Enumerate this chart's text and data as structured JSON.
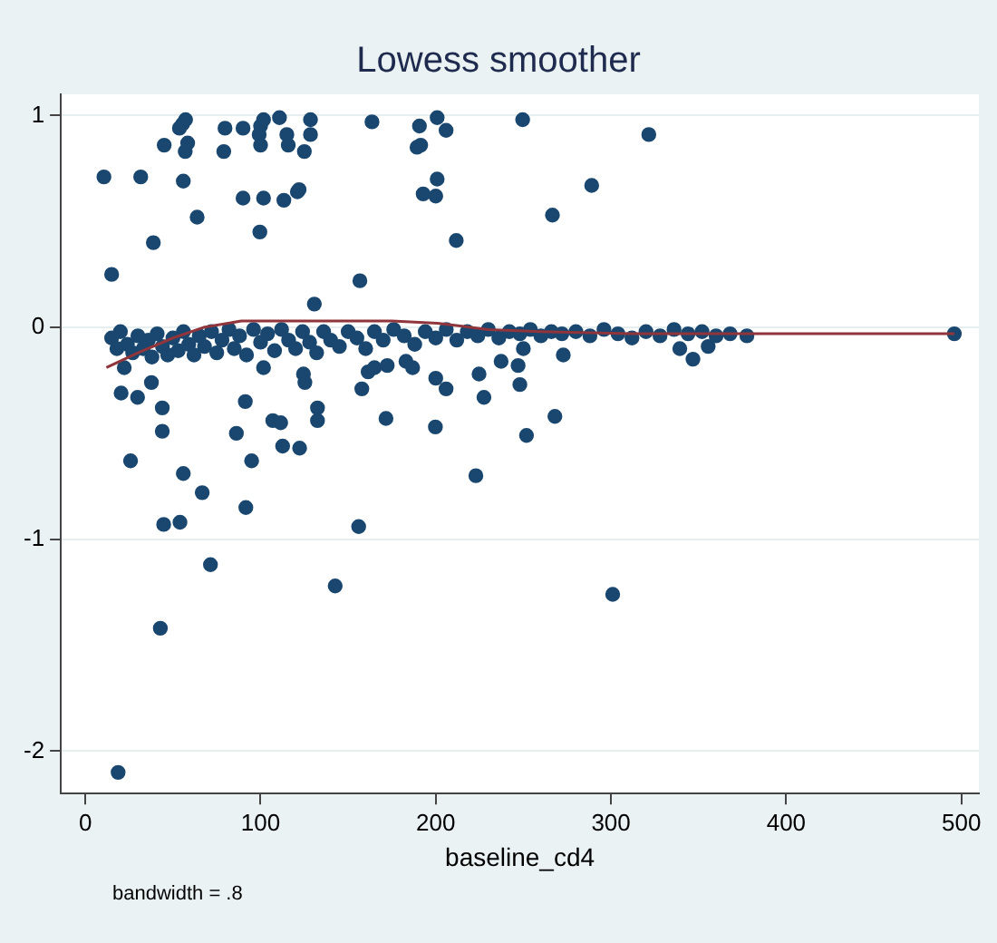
{
  "chart_data": {
    "type": "scatter",
    "title": "Lowess smoother",
    "xlabel": "baseline_cd4",
    "annotations": [
      "bandwidth = .8"
    ],
    "xlim": [
      -14,
      510
    ],
    "xticks": [
      0,
      100,
      200,
      300,
      400,
      500
    ],
    "ylim": [
      -2.2,
      1.1
    ],
    "yticks": [
      -2,
      -1,
      0,
      1
    ],
    "grid": "y",
    "legend": false,
    "series": [
      {
        "marker": "circle",
        "color": "#1a476f",
        "x": [
          10.6,
          31.6,
          15,
          38.8,
          45,
          53.7,
          55.5,
          57.2,
          58.4,
          57,
          55.9,
          63.8,
          79.7,
          79,
          90,
          90,
          100,
          101.7,
          99.2,
          100,
          99.6,
          101.7,
          110.8,
          115,
          115.8,
          113.3,
          121,
          122,
          125,
          128.5,
          128.5,
          130.7,
          156.7,
          163.6,
          190.7,
          189.3,
          191.4,
          200.8,
          205.9,
          200.8,
          192.8,
          200,
          211.7,
          249.6,
          321.6,
          289,
          266.6,
          22.2,
          20.4,
          29.8,
          37.7,
          43.9,
          43.9,
          25.8,
          55.9,
          91.3,
          86.2,
          94.9,
          107,
          111.5,
          112.6,
          122.3,
          101.7,
          124.5,
          125.3,
          132.5,
          132.5,
          157.8,
          161.4,
          165,
          172.3,
          171.6,
          183,
          186.8,
          200,
          205.9,
          199.8,
          224.7,
          227.5,
          237.3,
          247,
          248,
          251.8,
          222.9,
          250,
          272.8,
          268,
          339.3,
          346.8,
          355.5,
          377.6,
          496,
          66.7,
          44.7,
          54,
          71.4,
          42.8,
          18.7,
          91.6,
          142.6,
          156,
          301,
          15,
          18,
          20,
          24,
          27,
          30,
          33,
          36,
          38,
          41,
          44,
          47,
          50,
          53,
          56,
          59,
          62,
          65,
          68,
          72,
          75,
          78,
          82,
          85,
          88,
          92,
          96,
          100,
          104,
          108,
          112,
          116,
          120,
          124,
          128,
          132,
          136,
          140,
          145,
          150,
          155,
          160,
          165,
          170,
          176,
          182,
          188,
          194,
          200,
          206,
          212,
          218,
          224,
          230,
          236,
          242,
          248,
          254,
          260,
          266,
          272,
          280,
          288,
          296,
          304,
          312,
          320,
          328,
          336,
          344,
          352,
          360,
          368
        ],
        "values": [
          0.71,
          0.71,
          0.25,
          0.4,
          0.86,
          0.94,
          0.96,
          0.98,
          0.87,
          0.83,
          0.69,
          0.52,
          0.94,
          0.83,
          0.94,
          0.61,
          0.95,
          0.98,
          0.91,
          0.86,
          0.45,
          0.61,
          0.99,
          0.91,
          0.86,
          0.6,
          0.64,
          0.65,
          0.83,
          0.98,
          0.91,
          0.11,
          0.22,
          0.97,
          0.95,
          0.85,
          0.86,
          0.99,
          0.93,
          0.7,
          0.63,
          0.62,
          0.41,
          0.98,
          0.91,
          0.67,
          0.53,
          -0.19,
          -0.31,
          -0.33,
          -0.26,
          -0.38,
          -0.49,
          -0.63,
          -0.69,
          -0.35,
          -0.5,
          -0.63,
          -0.44,
          -0.45,
          -0.56,
          -0.57,
          -0.19,
          -0.22,
          -0.26,
          -0.38,
          -0.44,
          -0.29,
          -0.21,
          -0.19,
          -0.18,
          -0.43,
          -0.16,
          -0.19,
          -0.24,
          -0.29,
          -0.47,
          -0.22,
          -0.33,
          -0.16,
          -0.18,
          -0.27,
          -0.51,
          -0.7,
          -0.1,
          -0.13,
          -0.42,
          -0.1,
          -0.15,
          -0.09,
          -0.04,
          -0.03,
          -0.78,
          -0.93,
          -0.92,
          -1.12,
          -1.42,
          -2.1,
          -0.85,
          -1.22,
          -0.94,
          -1.26,
          -0.05,
          -0.1,
          -0.02,
          -0.08,
          -0.12,
          -0.04,
          -0.1,
          -0.06,
          -0.14,
          -0.03,
          -0.09,
          -0.13,
          -0.05,
          -0.11,
          -0.02,
          -0.08,
          -0.13,
          -0.04,
          -0.09,
          -0.02,
          -0.12,
          -0.06,
          -0.01,
          -0.1,
          -0.04,
          -0.13,
          -0.01,
          -0.07,
          -0.03,
          -0.11,
          -0.01,
          -0.06,
          -0.1,
          -0.02,
          -0.07,
          -0.12,
          -0.02,
          -0.06,
          -0.09,
          -0.02,
          -0.05,
          -0.1,
          -0.02,
          -0.06,
          -0.01,
          -0.04,
          -0.08,
          -0.02,
          -0.05,
          -0.01,
          -0.06,
          -0.02,
          -0.04,
          -0.01,
          -0.05,
          -0.02,
          -0.03,
          -0.01,
          -0.04,
          -0.02,
          -0.03,
          -0.02,
          -0.04,
          -0.01,
          -0.03,
          -0.05,
          -0.02,
          -0.04,
          -0.01,
          -0.03,
          -0.02,
          -0.04,
          -0.03
        ]
      },
      {
        "type": "line",
        "marker": "none",
        "line_style": "solid",
        "color": "#90353b",
        "x": [
          12,
          30,
          50,
          67.5,
          89,
          120,
          143,
          175,
          201,
          230,
          260,
          311.5,
          400,
          496
        ],
        "values": [
          -0.19,
          -0.12,
          -0.05,
          0,
          0.03,
          0.03,
          0.03,
          0.03,
          0.02,
          -0.01,
          -0.02,
          -0.03,
          -0.03,
          -0.03
        ]
      }
    ]
  }
}
